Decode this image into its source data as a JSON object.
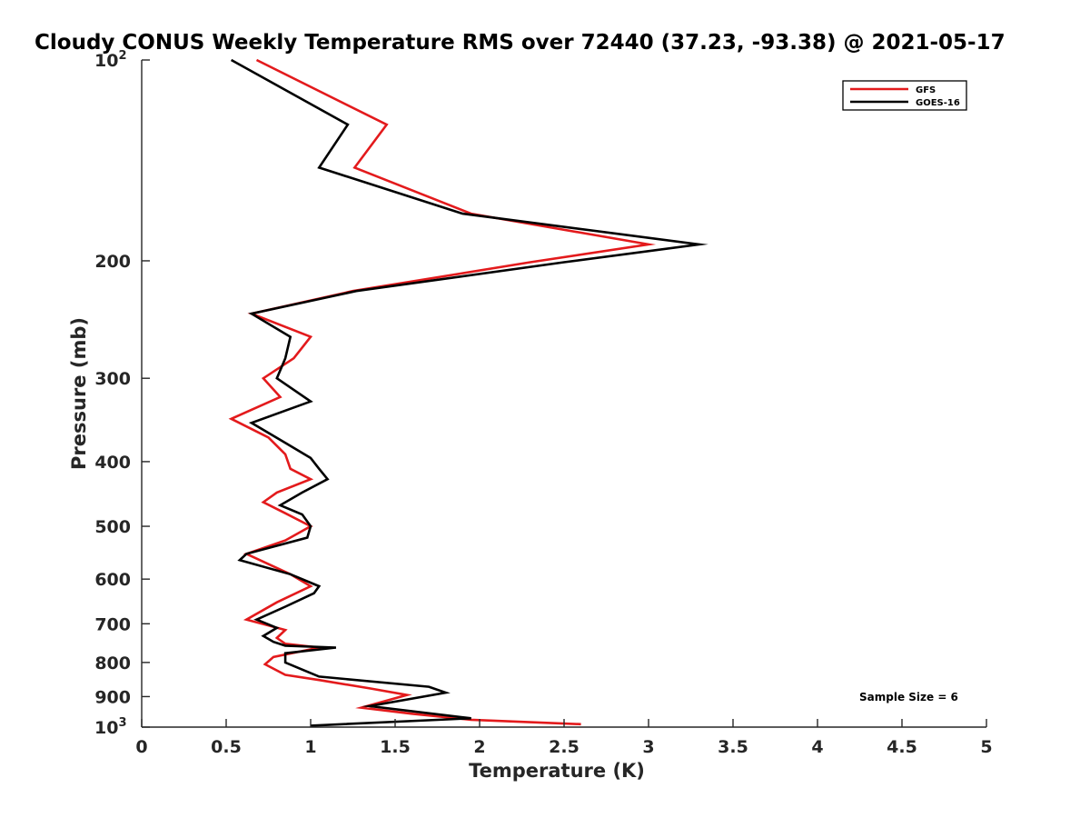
{
  "chart_data": {
    "type": "line",
    "title": "Cloudy CONUS Weekly Temperature RMS over 72440 (37.23, -93.38) @ 2021-05-17",
    "xlabel": "Temperature (K)",
    "ylabel": "Pressure (mb)",
    "xlim": [
      0,
      5
    ],
    "ylim": [
      100,
      1000
    ],
    "y_scale": "log",
    "y_reversed": true,
    "x_ticks": [
      "0",
      "0.5",
      "1",
      "1.5",
      "2",
      "2.5",
      "3",
      "3.5",
      "4",
      "4.5",
      "5"
    ],
    "y_ticks": [
      {
        "value": 100,
        "base": "10",
        "exp": "2"
      },
      {
        "value": 200,
        "label": "200"
      },
      {
        "value": 300,
        "label": "300"
      },
      {
        "value": 400,
        "label": "400"
      },
      {
        "value": 500,
        "label": "500"
      },
      {
        "value": 600,
        "label": "600"
      },
      {
        "value": 700,
        "label": "700"
      },
      {
        "value": 800,
        "label": "800"
      },
      {
        "value": 900,
        "label": "900"
      },
      {
        "value": 1000,
        "base": "10",
        "exp": "3"
      }
    ],
    "legend_position": "top-right",
    "annotation": "Sample Size = 6",
    "series": [
      {
        "name": "GFS",
        "color": "#e31a1c",
        "points": [
          [
            0.68,
            100
          ],
          [
            1.45,
            125
          ],
          [
            1.26,
            145
          ],
          [
            1.95,
            170
          ],
          [
            3.0,
            189
          ],
          [
            2.3,
            201
          ],
          [
            1.25,
            222
          ],
          [
            0.65,
            240
          ],
          [
            1.0,
            260
          ],
          [
            0.9,
            280
          ],
          [
            0.72,
            300
          ],
          [
            0.82,
            320
          ],
          [
            0.53,
            345
          ],
          [
            0.75,
            368
          ],
          [
            0.85,
            390
          ],
          [
            0.88,
            410
          ],
          [
            1.0,
            425
          ],
          [
            0.8,
            445
          ],
          [
            0.72,
            460
          ],
          [
            0.85,
            478
          ],
          [
            1.0,
            500
          ],
          [
            0.85,
            525
          ],
          [
            0.62,
            550
          ],
          [
            0.88,
            590
          ],
          [
            1.0,
            615
          ],
          [
            0.8,
            650
          ],
          [
            0.62,
            690
          ],
          [
            0.85,
            715
          ],
          [
            0.8,
            735
          ],
          [
            0.85,
            750
          ],
          [
            1.05,
            760
          ],
          [
            0.78,
            785
          ],
          [
            0.73,
            805
          ],
          [
            0.85,
            835
          ],
          [
            1.05,
            850
          ],
          [
            1.35,
            875
          ],
          [
            1.57,
            895
          ],
          [
            1.3,
            935
          ],
          [
            1.6,
            955
          ],
          [
            1.95,
            975
          ],
          [
            2.6,
            990
          ]
        ]
      },
      {
        "name": "GOES-16",
        "color": "#000000",
        "points": [
          [
            0.53,
            100
          ],
          [
            1.22,
            125
          ],
          [
            1.05,
            145
          ],
          [
            1.9,
            170
          ],
          [
            3.3,
            189
          ],
          [
            2.5,
            201
          ],
          [
            1.27,
            222
          ],
          [
            0.65,
            240
          ],
          [
            0.88,
            260
          ],
          [
            0.85,
            280
          ],
          [
            0.8,
            300
          ],
          [
            1.0,
            325
          ],
          [
            0.65,
            350
          ],
          [
            0.85,
            375
          ],
          [
            1.0,
            395
          ],
          [
            1.05,
            410
          ],
          [
            1.1,
            425
          ],
          [
            0.95,
            445
          ],
          [
            0.82,
            465
          ],
          [
            0.95,
            480
          ],
          [
            1.0,
            500
          ],
          [
            0.98,
            520
          ],
          [
            0.62,
            550
          ],
          [
            0.58,
            562
          ],
          [
            0.88,
            590
          ],
          [
            1.05,
            615
          ],
          [
            1.02,
            630
          ],
          [
            0.85,
            660
          ],
          [
            0.68,
            690
          ],
          [
            0.8,
            710
          ],
          [
            0.72,
            730
          ],
          [
            0.78,
            745
          ],
          [
            0.85,
            755
          ],
          [
            1.15,
            760
          ],
          [
            0.85,
            775
          ],
          [
            0.85,
            800
          ],
          [
            0.95,
            820
          ],
          [
            1.05,
            840
          ],
          [
            1.7,
            870
          ],
          [
            1.8,
            888
          ],
          [
            1.35,
            930
          ],
          [
            1.95,
            970
          ],
          [
            1.0,
            995
          ]
        ]
      }
    ]
  }
}
